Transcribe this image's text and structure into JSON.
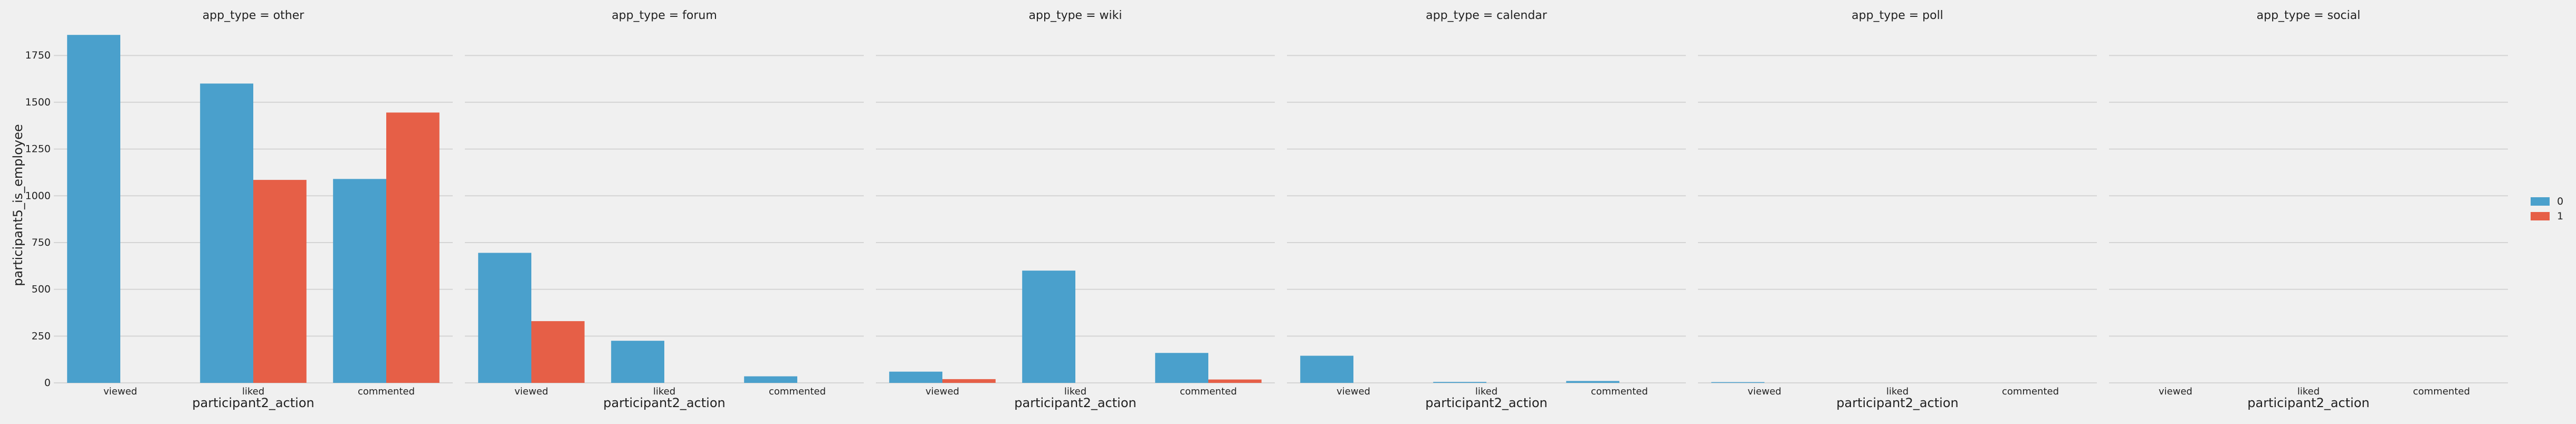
{
  "chart_data": {
    "type": "bar",
    "ylabel": "participant5_is_employee",
    "xlabel": "participant2_action",
    "categories": [
      "viewed",
      "liked",
      "commented"
    ],
    "yticks": [
      0,
      250,
      500,
      750,
      1000,
      1250,
      1500,
      1750
    ],
    "ylim": [
      0,
      1900
    ],
    "grid": true,
    "legend": {
      "placement": "right",
      "entries": [
        {
          "label": "0",
          "color": "#4aa0cc"
        },
        {
          "label": "1",
          "color": "#e65f47"
        }
      ]
    },
    "facets": [
      {
        "title": "app_type = other",
        "series": [
          {
            "name": "0",
            "values": [
              1860,
              1600,
              1090
            ]
          },
          {
            "name": "1",
            "values": [
              0,
              1085,
              1445
            ]
          }
        ]
      },
      {
        "title": "app_type = forum",
        "series": [
          {
            "name": "0",
            "values": [
              695,
              225,
              35
            ]
          },
          {
            "name": "1",
            "values": [
              330,
              0,
              0
            ]
          }
        ]
      },
      {
        "title": "app_type = wiki",
        "series": [
          {
            "name": "0",
            "values": [
              60,
              600,
              160
            ]
          },
          {
            "name": "1",
            "values": [
              20,
              0,
              18
            ]
          }
        ]
      },
      {
        "title": "app_type = calendar",
        "series": [
          {
            "name": "0",
            "values": [
              145,
              5,
              10
            ]
          },
          {
            "name": "1",
            "values": [
              0,
              0,
              0
            ]
          }
        ]
      },
      {
        "title": "app_type = poll",
        "series": [
          {
            "name": "0",
            "values": [
              4,
              0,
              0
            ]
          },
          {
            "name": "1",
            "values": [
              0,
              0,
              0
            ]
          }
        ]
      },
      {
        "title": "app_type = social",
        "series": [
          {
            "name": "0",
            "values": [
              0,
              0,
              0
            ]
          },
          {
            "name": "1",
            "values": [
              0,
              0,
              0
            ]
          }
        ]
      }
    ]
  }
}
